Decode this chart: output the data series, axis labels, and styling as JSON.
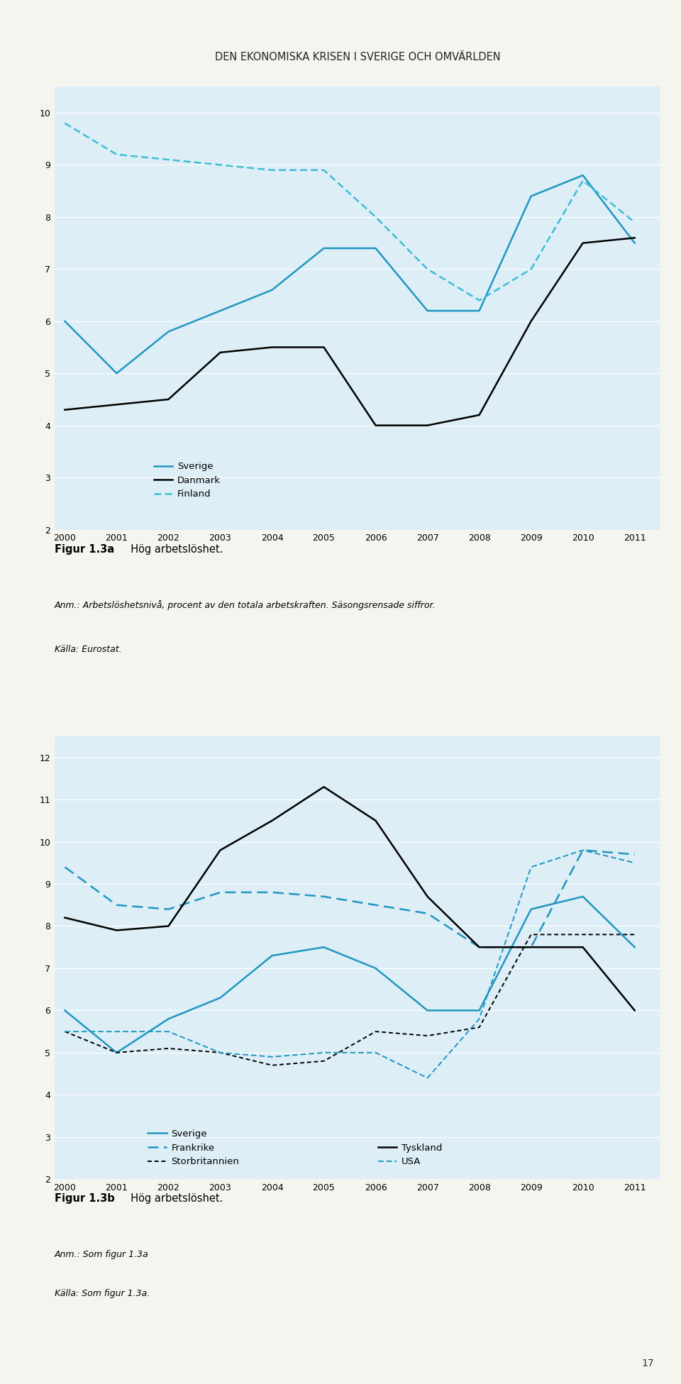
{
  "title": "DEN EKONOMISKA KRISEN I SVERIGE OCH OMVÄRLDEN",
  "background_color": "#ddeef6",
  "plot_bg_color": "#ddeef6",
  "page_bg_color": "#f5f5f0",
  "chart1": {
    "fig_label": "Figur 1.3a",
    "fig_title": "Hög arbetslöshet.",
    "anm": "Anm.: Arbetslöshetsnivå, procent av den totala arbetskraften. Säsongsrensade siffror.",
    "kalla": "Källa: Eurostat.",
    "ylim": [
      2,
      10.5
    ],
    "yticks": [
      2,
      3,
      4,
      5,
      6,
      7,
      8,
      9,
      10
    ],
    "years": [
      2000,
      2001,
      2002,
      2003,
      2004,
      2005,
      2006,
      2007,
      2008,
      2009,
      2010,
      2011
    ],
    "Sverige": [
      6.0,
      5.0,
      5.8,
      6.2,
      6.6,
      7.4,
      7.4,
      6.2,
      6.2,
      8.4,
      8.8,
      7.5
    ],
    "Danmark": [
      4.3,
      4.4,
      4.5,
      5.4,
      5.5,
      5.5,
      4.0,
      4.0,
      4.2,
      6.0,
      7.5,
      7.6
    ],
    "Finland": [
      9.8,
      9.2,
      9.1,
      9.0,
      8.9,
      8.9,
      8.0,
      7.0,
      6.4,
      7.0,
      8.7,
      7.9
    ],
    "Sverige_color": "#2196c0",
    "Danmark_color": "#000000",
    "Finland_color": "#40bcd8"
  },
  "chart2": {
    "fig_label": "Figur 1.3b",
    "fig_title": "Hög arbetslöshet.",
    "anm": "Anm.: Som figur 1.3a",
    "kalla": "Källa: Som figur 1.3a.",
    "ylim": [
      2,
      12.5
    ],
    "yticks": [
      2,
      3,
      4,
      5,
      6,
      7,
      8,
      9,
      10,
      11,
      12
    ],
    "years": [
      2000,
      2001,
      2002,
      2003,
      2004,
      2005,
      2006,
      2007,
      2008,
      2009,
      2010,
      2011
    ],
    "Sverige": [
      6.0,
      5.0,
      5.8,
      6.3,
      7.3,
      7.5,
      7.0,
      6.0,
      6.0,
      8.4,
      8.7,
      7.5
    ],
    "Frankrike": [
      9.4,
      8.5,
      8.4,
      8.8,
      8.8,
      8.7,
      8.5,
      8.3,
      7.5,
      7.5,
      9.8,
      9.7
    ],
    "Storbritannien": [
      5.5,
      5.0,
      5.1,
      5.0,
      4.7,
      4.8,
      5.5,
      5.4,
      5.6,
      7.8,
      7.8,
      7.8
    ],
    "Tyskland": [
      8.2,
      7.9,
      8.0,
      9.8,
      10.5,
      11.3,
      10.5,
      8.7,
      7.5,
      7.5,
      7.5,
      6.0
    ],
    "USA": [
      5.5,
      5.5,
      5.5,
      5.0,
      4.9,
      5.0,
      5.0,
      4.4,
      5.8,
      9.4,
      9.8,
      9.5
    ],
    "Sverige_color": "#2196c0",
    "Frankrike_color": "#2196c0",
    "Storbritannien_color": "#000000",
    "Tyskland_color": "#000000",
    "USA_color": "#2196c0"
  }
}
